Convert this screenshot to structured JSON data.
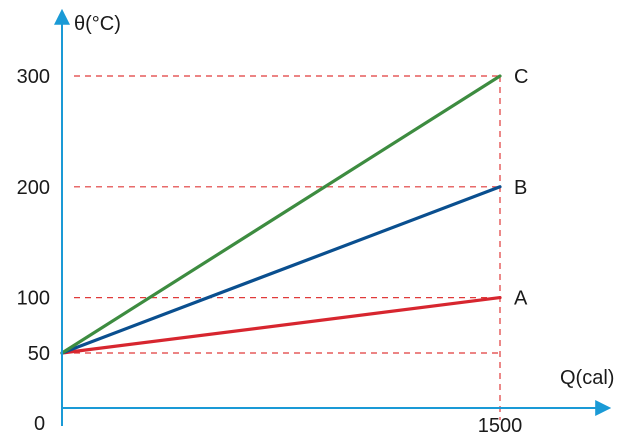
{
  "chart_data": {
    "type": "line",
    "xlabel": "Q(cal)",
    "ylabel": "θ(°C)",
    "origin_label": "0",
    "x_ticks": [
      1500
    ],
    "y_ticks": [
      50,
      100,
      200,
      300
    ],
    "xlim": [
      0,
      1750
    ],
    "ylim": [
      0,
      340
    ],
    "grid": "dashed guide lines at data points",
    "legend": "labels at line ends",
    "series": [
      {
        "name": "A",
        "color": "#d7262f",
        "x": [
          0,
          1500
        ],
        "y": [
          50,
          100
        ]
      },
      {
        "name": "B",
        "color": "#0a4f8f",
        "x": [
          0,
          1500
        ],
        "y": [
          50,
          200
        ]
      },
      {
        "name": "C",
        "color": "#3d8c40",
        "x": [
          0,
          1500
        ],
        "y": [
          50,
          300
        ]
      }
    ],
    "colors": {
      "axis": "#1a9ad6",
      "guide": "#e03a3a"
    }
  }
}
